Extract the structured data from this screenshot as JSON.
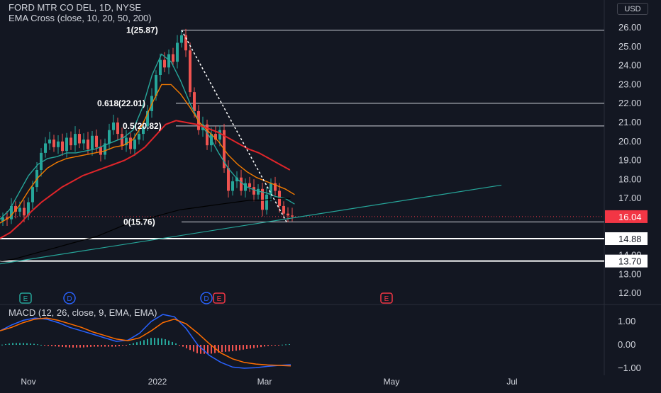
{
  "header": {
    "symbol_line": "FORD MTR CO DEL, 1D, NYSE",
    "indicator_line": "EMA Cross (close, 10, 20, 50, 200)",
    "currency": "USD"
  },
  "colors": {
    "background": "#131722",
    "up": "#26a69a",
    "down": "#ef5350",
    "ema10": "#26a69a",
    "ema20": "#f57c00",
    "ema50": "#e0252a",
    "ema200": "#000000",
    "trendline": "#26a69a",
    "macd": "#2962ff",
    "signal": "#ff6d00",
    "last_price": "#f23645"
  },
  "chart_data": [
    {
      "type": "candlestick",
      "symbol": "FORD MTR CO DEL",
      "interval": "1D",
      "exchange": "NYSE",
      "y_ticks": [
        "26.00",
        "25.00",
        "24.00",
        "23.00",
        "22.00",
        "21.00",
        "20.00",
        "19.00",
        "18.00",
        "17.00",
        "16.00",
        "15.00",
        "14.00",
        "13.00",
        "12.00"
      ],
      "ylim": [
        11.5,
        27.0
      ],
      "x_ticks": [
        "Nov",
        "2022",
        "Mar",
        "May",
        "Jul"
      ],
      "last_price": 16.04,
      "last_price_label": "16.04",
      "horizontal_levels": [
        {
          "value": 14.88,
          "label": "14.88"
        },
        {
          "value": 13.7,
          "label": "13.70"
        }
      ],
      "fibonacci": {
        "high": 25.87,
        "low": 15.76,
        "levels": [
          {
            "ratio": "1",
            "value": 25.87,
            "label": "1(25.87)"
          },
          {
            "ratio": "0.618",
            "value": 22.01,
            "label": "0.618(22.01)"
          },
          {
            "ratio": "0.5",
            "value": 20.82,
            "label": "0.5(20.82)"
          },
          {
            "ratio": "0",
            "value": 15.76,
            "label": "0(15.76)"
          }
        ]
      },
      "events": [
        {
          "label": "E",
          "kind": "earnings"
        },
        {
          "label": "D",
          "kind": "dividend"
        },
        {
          "label": "D",
          "kind": "dividend"
        },
        {
          "label": "E",
          "kind": "earnings"
        },
        {
          "label": "E",
          "kind": "earnings"
        }
      ],
      "series": [
        {
          "name": "EMA 10",
          "values": [
            15.9,
            16.4,
            17.3,
            18.2,
            18.8,
            19.1,
            19.2,
            19.4,
            19.4,
            19.5,
            19.6,
            19.8,
            20.0,
            20.2,
            20.6,
            21.8,
            23.5,
            24.6,
            24.2,
            23.2,
            22.0,
            21.0,
            20.3,
            19.4,
            18.6,
            18.0,
            17.6,
            17.4,
            17.3,
            17.1,
            17.0,
            16.7
          ]
        },
        {
          "name": "EMA 20",
          "values": [
            15.7,
            16.0,
            16.6,
            17.4,
            18.1,
            18.6,
            18.9,
            19.1,
            19.2,
            19.3,
            19.4,
            19.5,
            19.7,
            19.8,
            20.1,
            20.9,
            22.0,
            23.0,
            23.0,
            22.5,
            21.8,
            21.0,
            20.5,
            20.0,
            19.3,
            18.8,
            18.4,
            18.1,
            17.9,
            17.7,
            17.5,
            17.2
          ]
        },
        {
          "name": "EMA 50",
          "values": [
            14.9,
            15.2,
            15.7,
            16.3,
            16.8,
            17.2,
            17.6,
            17.9,
            18.2,
            18.4,
            18.6,
            18.8,
            19.0,
            19.3,
            19.7,
            20.3,
            20.9,
            21.1,
            21.0,
            20.9,
            20.7,
            20.5,
            20.2,
            19.9,
            19.6,
            19.4,
            19.1,
            18.8,
            18.5
          ]
        },
        {
          "name": "EMA 200",
          "values": [
            13.7,
            13.8,
            14.0,
            14.2,
            14.4,
            14.6,
            14.8,
            15.0,
            15.3,
            15.6,
            15.8,
            16.0,
            16.2,
            16.4,
            16.5,
            16.6,
            16.7,
            16.8,
            16.9,
            16.9,
            17.0,
            17.0
          ]
        }
      ]
    },
    {
      "type": "macd",
      "title": "MACD (12, 26, close, 9, EMA, EMA)",
      "y_ticks": [
        "1.00",
        "0.00",
        "−1.00"
      ],
      "ylim": [
        -1.4,
        1.35
      ],
      "series": [
        {
          "name": "MACD",
          "values": [
            0.6,
            0.85,
            1.05,
            1.15,
            1.1,
            0.95,
            0.75,
            0.6,
            0.45,
            0.3,
            0.15,
            0.2,
            0.5,
            1.0,
            1.3,
            1.2,
            0.7,
            0.0,
            -0.45,
            -0.75,
            -0.95,
            -1.0,
            -0.98,
            -0.92,
            -0.88,
            -0.85
          ]
        },
        {
          "name": "Signal",
          "values": [
            0.6,
            0.75,
            0.95,
            1.1,
            1.15,
            1.05,
            0.9,
            0.75,
            0.55,
            0.4,
            0.25,
            0.18,
            0.3,
            0.6,
            0.95,
            1.1,
            0.9,
            0.5,
            0.05,
            -0.35,
            -0.6,
            -0.75,
            -0.82,
            -0.86,
            -0.88,
            -0.9
          ]
        }
      ]
    }
  ]
}
